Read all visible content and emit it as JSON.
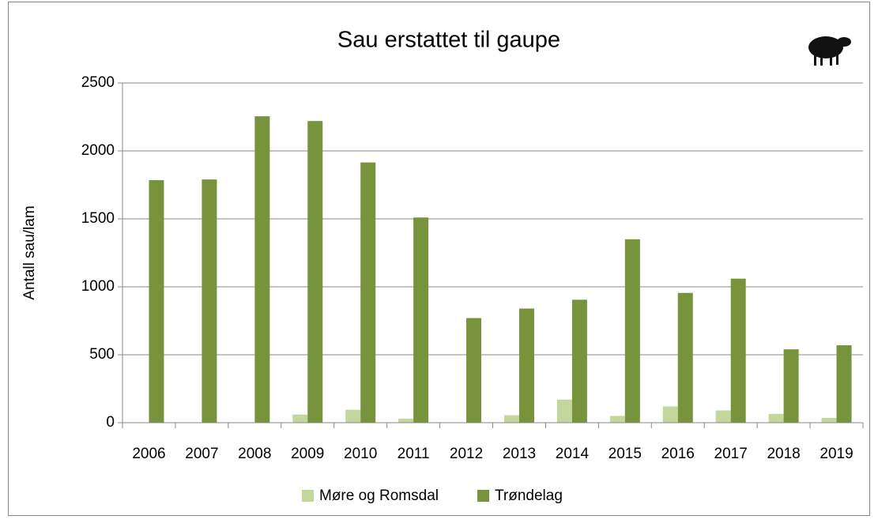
{
  "chart_data": {
    "type": "bar",
    "title": "Sau erstattet til gaupe",
    "y_label": "Antall sau/lam",
    "categories": [
      "2006",
      "2007",
      "2008",
      "2009",
      "2010",
      "2011",
      "2012",
      "2013",
      "2014",
      "2015",
      "2016",
      "2017",
      "2018",
      "2019"
    ],
    "series": [
      {
        "name": "Møre og Romsdal",
        "color": "#c3d69b",
        "values": [
          0,
          0,
          0,
          60,
          95,
          30,
          0,
          55,
          170,
          50,
          120,
          90,
          65,
          35
        ]
      },
      {
        "name": "Trøndelag",
        "color": "#77933c",
        "values": [
          1785,
          1790,
          2255,
          2220,
          1915,
          1510,
          770,
          840,
          905,
          1350,
          955,
          1060,
          540,
          570
        ]
      }
    ],
    "ylim": [
      0,
      2500
    ],
    "yticks": [
      0,
      500,
      1000,
      1500,
      2000,
      2500
    ],
    "grid": true,
    "legend": "bottom"
  }
}
